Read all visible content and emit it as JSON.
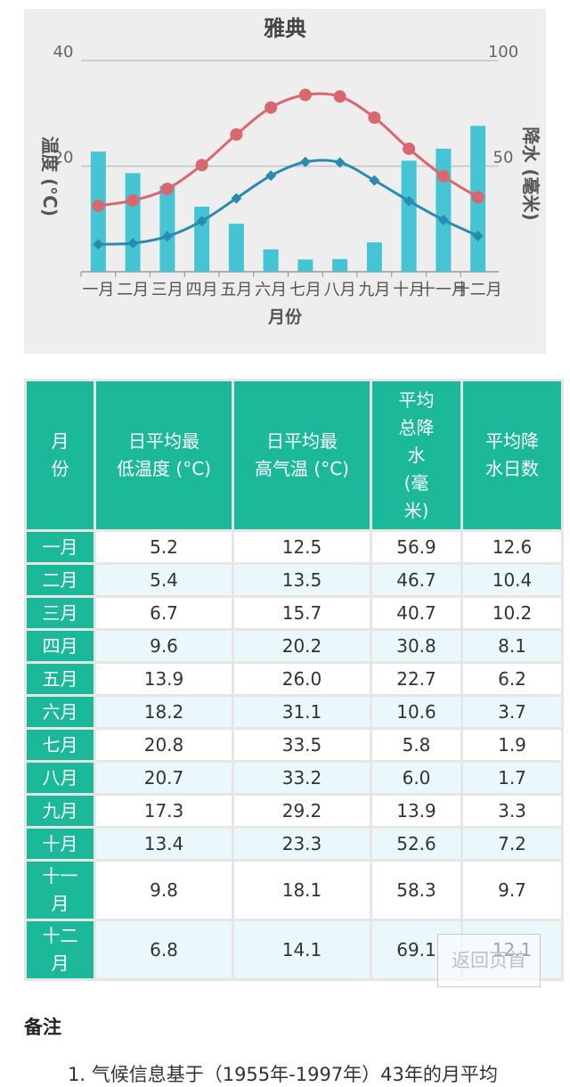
{
  "chart_data": {
    "type": "bar+line",
    "title": "雅典",
    "xlabel": "月份",
    "ylabel_left": "温度 (°C)",
    "ylabel_right": "降水 (毫米)",
    "categories": [
      "一月",
      "二月",
      "三月",
      "四月",
      "五月",
      "六月",
      "七月",
      "八月",
      "九月",
      "十月",
      "十一月",
      "十二月"
    ],
    "y_left_ticks": [
      "20",
      "40"
    ],
    "y_left_range": [
      0,
      40
    ],
    "y_right_ticks": [
      "50",
      "100"
    ],
    "y_right_range": [
      0,
      100
    ],
    "grid": true,
    "series": [
      {
        "kind": "bar",
        "axis": "right",
        "color": "#45c5d3",
        "values": [
          56.9,
          46.7,
          40.7,
          30.8,
          22.7,
          10.6,
          5.8,
          6.0,
          13.9,
          52.6,
          58.3,
          69.1
        ]
      },
      {
        "kind": "line",
        "axis": "left",
        "marker": "circle",
        "color": "#d9676f",
        "values": [
          12.5,
          13.5,
          15.7,
          20.2,
          26.0,
          31.1,
          33.5,
          33.2,
          29.2,
          23.3,
          18.1,
          14.1
        ]
      },
      {
        "kind": "line",
        "axis": "left",
        "marker": "diamond",
        "color": "#2a8bb0",
        "values": [
          5.2,
          5.4,
          6.7,
          9.6,
          13.9,
          18.2,
          20.8,
          20.7,
          17.3,
          13.4,
          9.8,
          6.8
        ]
      }
    ]
  },
  "table": {
    "headers": [
      "月\n份",
      "日平均最\n低温度 (°C)",
      "日平均最\n高气温 (°C)",
      "平均\n总降\n水\n(毫\n米)",
      "平均降\n水日数"
    ],
    "rows": [
      {
        "month": "一月",
        "low": "5.2",
        "high": "12.5",
        "precip": "56.9",
        "days": "12.6"
      },
      {
        "month": "二月",
        "low": "5.4",
        "high": "13.5",
        "precip": "46.7",
        "days": "10.4"
      },
      {
        "month": "三月",
        "low": "6.7",
        "high": "15.7",
        "precip": "40.7",
        "days": "10.2"
      },
      {
        "month": "四月",
        "low": "9.6",
        "high": "20.2",
        "precip": "30.8",
        "days": "8.1"
      },
      {
        "month": "五月",
        "low": "13.9",
        "high": "26.0",
        "precip": "22.7",
        "days": "6.2"
      },
      {
        "month": "六月",
        "low": "18.2",
        "high": "31.1",
        "precip": "10.6",
        "days": "3.7"
      },
      {
        "month": "七月",
        "low": "20.8",
        "high": "33.5",
        "precip": "5.8",
        "days": "1.9"
      },
      {
        "month": "八月",
        "low": "20.7",
        "high": "33.2",
        "precip": "6.0",
        "days": "1.7"
      },
      {
        "month": "九月",
        "low": "17.3",
        "high": "29.2",
        "precip": "13.9",
        "days": "3.3"
      },
      {
        "month": "十月",
        "low": "13.4",
        "high": "23.3",
        "precip": "52.6",
        "days": "7.2"
      },
      {
        "month": "十一月",
        "low": "9.8",
        "high": "18.1",
        "precip": "58.3",
        "days": "9.7"
      },
      {
        "month": "十二月",
        "low": "6.8",
        "high": "14.1",
        "precip": "69.1",
        "days": "12.1"
      }
    ]
  },
  "back_to_top": "返回页首",
  "notes": {
    "heading": "备注",
    "line1": "1. 气候信息基于（1955年-1997年）43年的月平均"
  }
}
